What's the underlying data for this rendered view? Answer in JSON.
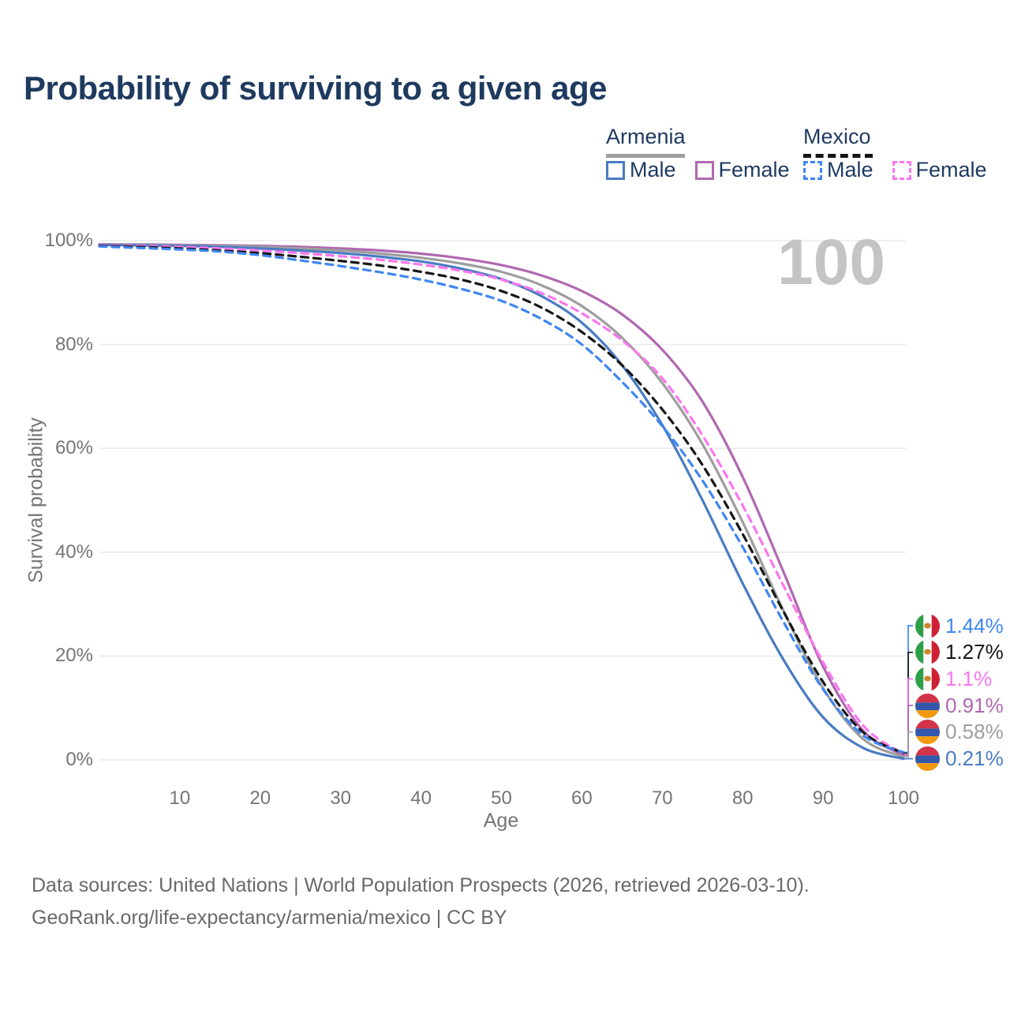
{
  "header": {
    "title": "Probability of surviving to a given age"
  },
  "legend": {
    "groups": [
      {
        "country": "Armenia",
        "line_style": "solid",
        "underline_color": "#9e9e9e",
        "items": [
          {
            "label": "Male",
            "color": "#4a7cc2"
          },
          {
            "label": "Female",
            "color": "#b168b1"
          }
        ]
      },
      {
        "country": "Mexico",
        "line_style": "dashed",
        "underline_color": "#161616",
        "items": [
          {
            "label": "Male",
            "color": "#3f86f2"
          },
          {
            "label": "Female",
            "color": "#fb76ee"
          }
        ]
      }
    ]
  },
  "watermark": {
    "text": "100"
  },
  "axes": {
    "x_label": "Age",
    "y_label": "Survival probability"
  },
  "chart_data": {
    "type": "line",
    "title": "Probability of surviving to a given age",
    "xlabel": "Age",
    "ylabel": "Survival probability",
    "xlim": [
      0,
      100
    ],
    "ylim": [
      0,
      100
    ],
    "grid": "horizontal-only",
    "legend_position": "top-right",
    "x_ticks": [
      {
        "label": "10",
        "value": 10
      },
      {
        "label": "20",
        "value": 20
      },
      {
        "label": "30",
        "value": 30
      },
      {
        "label": "40",
        "value": 40
      },
      {
        "label": "50",
        "value": 50
      },
      {
        "label": "60",
        "value": 60
      },
      {
        "label": "70",
        "value": 70
      },
      {
        "label": "80",
        "value": 80
      },
      {
        "label": "90",
        "value": 90
      },
      {
        "label": "100",
        "value": 100
      }
    ],
    "y_ticks": [
      {
        "label": "0%",
        "value": 0
      },
      {
        "label": "20%",
        "value": 20
      },
      {
        "label": "40%",
        "value": 40
      },
      {
        "label": "60%",
        "value": 60
      },
      {
        "label": "80%",
        "value": 80
      },
      {
        "label": "100%",
        "value": 100
      }
    ],
    "ages": [
      0,
      5,
      10,
      15,
      20,
      25,
      30,
      35,
      40,
      45,
      50,
      55,
      60,
      65,
      70,
      75,
      80,
      85,
      90,
      95,
      100
    ],
    "series": [
      {
        "name": "Armenia Female",
        "country": "Armenia",
        "sex": "Female",
        "style": "solid",
        "color": "#b168b1",
        "end_label": "0.91%",
        "values": [
          99.3,
          99.25,
          99.2,
          99.1,
          99.0,
          98.8,
          98.5,
          98.1,
          97.5,
          96.6,
          95.3,
          93.3,
          90.3,
          85.8,
          79.0,
          69.0,
          54.5,
          36.5,
          18.0,
          5.6,
          0.91
        ]
      },
      {
        "name": "Armenia",
        "country": "Armenia",
        "sex": "Both",
        "style": "solid",
        "color": "#9e9e9e",
        "end_label": "0.58%",
        "values": [
          99.25,
          99.2,
          99.1,
          99.0,
          98.8,
          98.5,
          98.1,
          97.5,
          96.7,
          95.6,
          94.0,
          91.4,
          87.4,
          81.3,
          72.6,
          60.8,
          45.8,
          29.0,
          13.8,
          4.0,
          0.58
        ]
      },
      {
        "name": "Armenia Male",
        "country": "Armenia",
        "sex": "Male",
        "style": "solid",
        "color": "#4a7cc2",
        "end_label": "0.21%",
        "values": [
          99.2,
          99.1,
          99.0,
          98.8,
          98.5,
          98.1,
          97.6,
          96.9,
          96.0,
          94.6,
          92.6,
          89.3,
          84.2,
          76.0,
          64.5,
          50.0,
          34.0,
          19.5,
          8.2,
          2.3,
          0.21
        ]
      },
      {
        "name": "Mexico Female",
        "country": "Mexico",
        "sex": "Female",
        "style": "dashed",
        "color": "#fb76ee",
        "end_label": "1.1%",
        "values": [
          99.1,
          99.0,
          98.8,
          98.5,
          98.1,
          97.6,
          97.0,
          96.3,
          95.4,
          94.2,
          92.5,
          89.9,
          86.0,
          80.8,
          73.5,
          62.5,
          49.0,
          33.8,
          18.8,
          6.6,
          1.1
        ]
      },
      {
        "name": "Mexico",
        "country": "Mexico",
        "sex": "Both",
        "style": "dashed",
        "color": "#161616",
        "end_label": "1.27%",
        "values": [
          99.0,
          98.8,
          98.5,
          98.1,
          97.6,
          96.9,
          96.1,
          95.2,
          94.0,
          92.5,
          90.3,
          87.1,
          82.4,
          76.0,
          67.5,
          56.8,
          43.5,
          28.8,
          15.0,
          5.3,
          1.27
        ]
      },
      {
        "name": "Mexico Male",
        "country": "Mexico",
        "sex": "Male",
        "style": "dashed",
        "color": "#3f86f2",
        "end_label": "1.44%",
        "values": [
          98.9,
          98.6,
          98.3,
          97.9,
          97.2,
          96.2,
          95.1,
          93.9,
          92.5,
          90.7,
          88.4,
          84.9,
          80.0,
          72.8,
          64.3,
          53.8,
          41.0,
          26.8,
          13.6,
          4.7,
          1.44
        ]
      }
    ],
    "end_labels": [
      {
        "series": "Mexico Male",
        "value": "1.44%",
        "flag": "mexico",
        "color": "#3f86f2"
      },
      {
        "series": "Mexico",
        "value": "1.27%",
        "flag": "mexico",
        "color": "#161616"
      },
      {
        "series": "Mexico Female",
        "value": "1.1%",
        "flag": "mexico",
        "color": "#fb76ee"
      },
      {
        "series": "Armenia Female",
        "value": "0.91%",
        "flag": "armenia",
        "color": "#b168b1"
      },
      {
        "series": "Armenia",
        "value": "0.58%",
        "flag": "armenia",
        "color": "#9e9e9e"
      },
      {
        "series": "Armenia Male",
        "value": "0.21%",
        "flag": "armenia",
        "color": "#4a7cc2"
      }
    ],
    "flag_colors": {
      "mexico": {
        "left": "#2f9e49",
        "mid": "#ffffff",
        "right": "#ce2035",
        "emblem": "#c9862b"
      },
      "armenia": {
        "top": "#d23349",
        "mid": "#3257ab",
        "bottom": "#f2990f"
      }
    }
  },
  "footer": {
    "line1": "Data sources: United Nations | World Population Prospects (2026, retrieved 2026-03-10).",
    "line2": "GeoRank.org/life-expectancy/armenia/mexico | CC BY"
  }
}
